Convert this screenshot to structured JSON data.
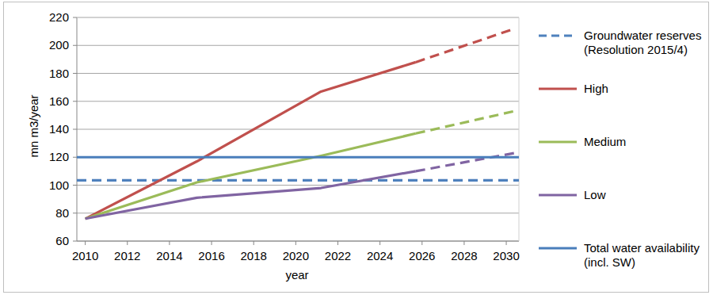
{
  "chart_data": {
    "type": "line",
    "x_label": "year",
    "y_label": "mn m3/year",
    "xlim": [
      2009.6,
      2030.6
    ],
    "xticks": [
      2010,
      2012,
      2014,
      2016,
      2018,
      2020,
      2022,
      2024,
      2026,
      2028,
      2030
    ],
    "ylim": [
      60,
      220
    ],
    "yticks": [
      60,
      80,
      100,
      120,
      140,
      160,
      180,
      200,
      220
    ],
    "grid": true,
    "legend": "right",
    "series": [
      {
        "name": "Groundwater reserves (Resolution 2015/4)",
        "color": "#4f81bd",
        "line_style": "dashed",
        "x": [
          2009.6,
          2030.6
        ],
        "values": [
          103.5,
          103.5
        ]
      },
      {
        "name": "High",
        "color": "#c0504d",
        "line_style": "solid",
        "x": [
          2010,
          2015.3,
          2021.2,
          2025.7
        ],
        "values": [
          76,
          117,
          167,
          188
        ]
      },
      {
        "color": "#c0504d",
        "line_style": "dashed",
        "x": [
          2025.7,
          2030.4
        ],
        "values": [
          188,
          212
        ]
      },
      {
        "name": "Medium",
        "color": "#9bbb59",
        "line_style": "solid",
        "x": [
          2010,
          2015.3,
          2021.2,
          2025.7
        ],
        "values": [
          76,
          102,
          121,
          137
        ]
      },
      {
        "color": "#9bbb59",
        "line_style": "dashed",
        "x": [
          2025.7,
          2030.4
        ],
        "values": [
          137,
          153
        ]
      },
      {
        "name": "Low",
        "color": "#8064a2",
        "line_style": "solid",
        "x": [
          2010,
          2015.3,
          2021.2,
          2025.7
        ],
        "values": [
          76,
          91,
          98,
          110
        ]
      },
      {
        "color": "#8064a2",
        "line_style": "dashed",
        "x": [
          2025.7,
          2030.4
        ],
        "values": [
          110,
          123
        ]
      },
      {
        "name": "Total water availability (incl. SW)",
        "color": "#4a7ebb",
        "line_style": "solid",
        "x": [
          2009.6,
          2030.6
        ],
        "values": [
          120,
          120
        ]
      }
    ]
  }
}
